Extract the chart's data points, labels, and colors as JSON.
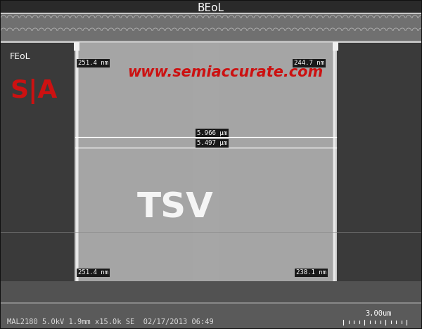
{
  "figsize": [
    6.0,
    4.68
  ],
  "dpi": 100,
  "bg_outer": "#1a1a1a",
  "top_dark_bar": "#282828",
  "beol_label": "BEoL",
  "feol_label": "FEoL",
  "tsv_label": "TSV",
  "watermark": "www.semiaccurate.com",
  "watermark_color": "#cc1111",
  "logo": "S|A",
  "logo_color": "#cc1111",
  "bottom_text": "MAL2180 5.0kV 1.9mm x15.0k SE  02/17/2013 06:49",
  "scale_text": "3.00um",
  "meas_labels": [
    "251.4 nm",
    "244.7 nm",
    "251.4 nm",
    "238.1 nm",
    "5.966 μm",
    "5.497 μm"
  ],
  "substrate_color": "#4a4a4a",
  "tsv_fill_color": "#a8a8a8",
  "wall_bright": "#e0e0e0",
  "beol_bg": "#787878",
  "beol_top_strip": "#d0d0d0",
  "bottom_bar_gray": "#606060",
  "border_color": "#222222"
}
